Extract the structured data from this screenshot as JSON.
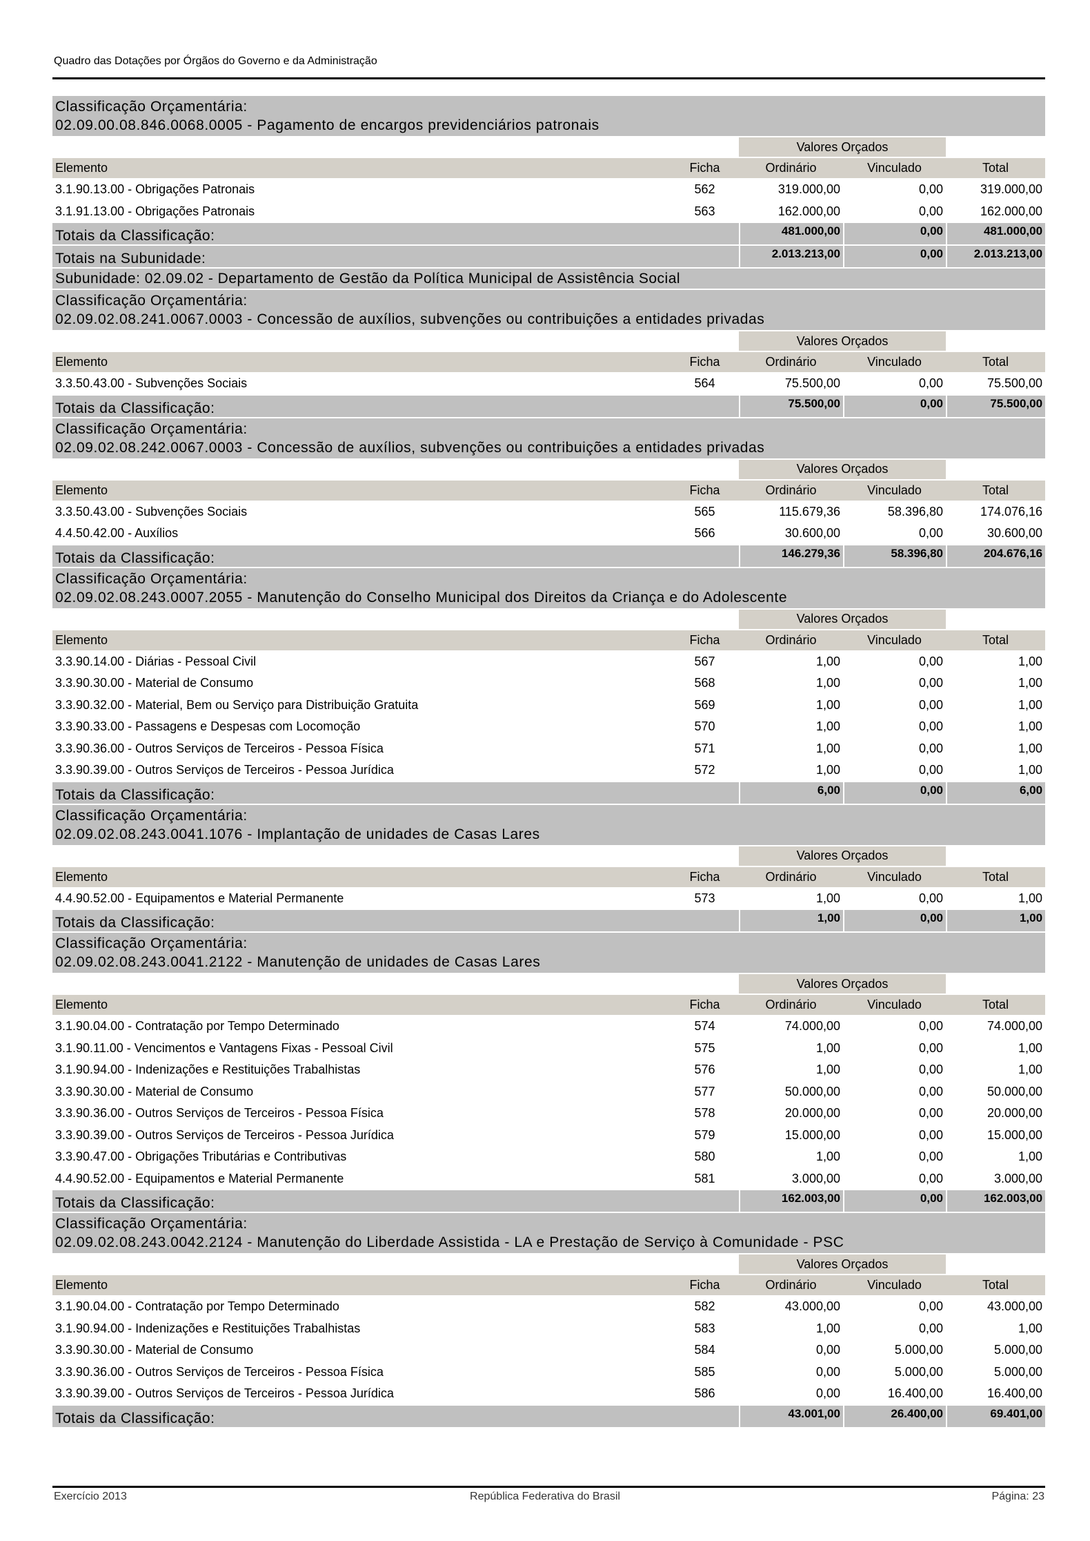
{
  "header": {
    "title": "Quadro das Dotações por Órgãos do Governo e da Administração"
  },
  "labels": {
    "classification": "Classificação Orçamentária:",
    "valores_orcados": "Valores Orçados",
    "col_elemento": "Elemento",
    "col_ficha": "Ficha",
    "col_ordinario": "Ordinário",
    "col_vinculado": "Vinculado",
    "col_total": "Total"
  },
  "sections": [
    {
      "code_title": "02.09.00.08.846.0068.0005 - Pagamento de encargos previdenciários patronais",
      "rows": [
        {
          "elemento": "3.1.90.13.00 - Obrigações Patronais",
          "ficha": "562",
          "ordinario": "319.000,00",
          "vinculado": "0,00",
          "total": "319.000,00"
        },
        {
          "elemento": "3.1.91.13.00 - Obrigações Patronais",
          "ficha": "563",
          "ordinario": "162.000,00",
          "vinculado": "0,00",
          "total": "162.000,00"
        }
      ],
      "totals": {
        "label": "Totais da Classificação:",
        "ordinario": "481.000,00",
        "vinculado": "0,00",
        "total": "481.000,00"
      },
      "subunit_totals": {
        "label": "Totais na Subunidade:",
        "ordinario": "2.013.213,00",
        "vinculado": "0,00",
        "total": "2.013.213,00"
      },
      "subunit_heading": "Subunidade: 02.09.02 - Departamento de Gestão da Política Municipal de Assistência Social"
    },
    {
      "code_title": "02.09.02.08.241.0067.0003 - Concessão de auxílios, subvenções ou contribuições a entidades privadas",
      "rows": [
        {
          "elemento": "3.3.50.43.00 - Subvenções Sociais",
          "ficha": "564",
          "ordinario": "75.500,00",
          "vinculado": "0,00",
          "total": "75.500,00"
        }
      ],
      "totals": {
        "label": "Totais da Classificação:",
        "ordinario": "75.500,00",
        "vinculado": "0,00",
        "total": "75.500,00"
      }
    },
    {
      "code_title": "02.09.02.08.242.0067.0003 - Concessão de auxílios, subvenções ou contribuições a entidades privadas",
      "rows": [
        {
          "elemento": "3.3.50.43.00 - Subvenções Sociais",
          "ficha": "565",
          "ordinario": "115.679,36",
          "vinculado": "58.396,80",
          "total": "174.076,16"
        },
        {
          "elemento": "4.4.50.42.00 - Auxílios",
          "ficha": "566",
          "ordinario": "30.600,00",
          "vinculado": "0,00",
          "total": "30.600,00"
        }
      ],
      "totals": {
        "label": "Totais da Classificação:",
        "ordinario": "146.279,36",
        "vinculado": "58.396,80",
        "total": "204.676,16"
      }
    },
    {
      "code_title": "02.09.02.08.243.0007.2055 - Manutenção do Conselho Municipal dos Direitos da Criança e do Adolescente",
      "rows": [
        {
          "elemento": "3.3.90.14.00 - Diárias - Pessoal Civil",
          "ficha": "567",
          "ordinario": "1,00",
          "vinculado": "0,00",
          "total": "1,00"
        },
        {
          "elemento": "3.3.90.30.00 - Material de Consumo",
          "ficha": "568",
          "ordinario": "1,00",
          "vinculado": "0,00",
          "total": "1,00"
        },
        {
          "elemento": "3.3.90.32.00 - Material, Bem ou Serviço para Distribuição Gratuita",
          "ficha": "569",
          "ordinario": "1,00",
          "vinculado": "0,00",
          "total": "1,00"
        },
        {
          "elemento": "3.3.90.33.00 - Passagens e Despesas com Locomoção",
          "ficha": "570",
          "ordinario": "1,00",
          "vinculado": "0,00",
          "total": "1,00"
        },
        {
          "elemento": "3.3.90.36.00 - Outros Serviços de Terceiros - Pessoa Física",
          "ficha": "571",
          "ordinario": "1,00",
          "vinculado": "0,00",
          "total": "1,00"
        },
        {
          "elemento": "3.3.90.39.00 - Outros Serviços de Terceiros - Pessoa Jurídica",
          "ficha": "572",
          "ordinario": "1,00",
          "vinculado": "0,00",
          "total": "1,00"
        }
      ],
      "totals": {
        "label": "Totais da Classificação:",
        "ordinario": "6,00",
        "vinculado": "0,00",
        "total": "6,00"
      }
    },
    {
      "code_title": "02.09.02.08.243.0041.1076 - Implantação de unidades de Casas Lares",
      "rows": [
        {
          "elemento": "4.4.90.52.00 - Equipamentos e Material Permanente",
          "ficha": "573",
          "ordinario": "1,00",
          "vinculado": "0,00",
          "total": "1,00"
        }
      ],
      "totals": {
        "label": "Totais da Classificação:",
        "ordinario": "1,00",
        "vinculado": "0,00",
        "total": "1,00"
      }
    },
    {
      "code_title": "02.09.02.08.243.0041.2122 - Manutenção de unidades de Casas Lares",
      "rows": [
        {
          "elemento": "3.1.90.04.00 - Contratação por Tempo Determinado",
          "ficha": "574",
          "ordinario": "74.000,00",
          "vinculado": "0,00",
          "total": "74.000,00"
        },
        {
          "elemento": "3.1.90.11.00 - Vencimentos e Vantagens Fixas - Pessoal Civil",
          "ficha": "575",
          "ordinario": "1,00",
          "vinculado": "0,00",
          "total": "1,00"
        },
        {
          "elemento": "3.1.90.94.00 - Indenizações e Restituições Trabalhistas",
          "ficha": "576",
          "ordinario": "1,00",
          "vinculado": "0,00",
          "total": "1,00"
        },
        {
          "elemento": "3.3.90.30.00 - Material de Consumo",
          "ficha": "577",
          "ordinario": "50.000,00",
          "vinculado": "0,00",
          "total": "50.000,00"
        },
        {
          "elemento": "3.3.90.36.00 - Outros Serviços de Terceiros - Pessoa Física",
          "ficha": "578",
          "ordinario": "20.000,00",
          "vinculado": "0,00",
          "total": "20.000,00"
        },
        {
          "elemento": "3.3.90.39.00 - Outros Serviços de Terceiros - Pessoa Jurídica",
          "ficha": "579",
          "ordinario": "15.000,00",
          "vinculado": "0,00",
          "total": "15.000,00"
        },
        {
          "elemento": "3.3.90.47.00 - Obrigações Tributárias e Contributivas",
          "ficha": "580",
          "ordinario": "1,00",
          "vinculado": "0,00",
          "total": "1,00"
        },
        {
          "elemento": "4.4.90.52.00 - Equipamentos e Material Permanente",
          "ficha": "581",
          "ordinario": "3.000,00",
          "vinculado": "0,00",
          "total": "3.000,00"
        }
      ],
      "totals": {
        "label": "Totais da Classificação:",
        "ordinario": "162.003,00",
        "vinculado": "0,00",
        "total": "162.003,00"
      }
    },
    {
      "code_title": "02.09.02.08.243.0042.2124 - Manutenção do Liberdade Assistida - LA e Prestação de Serviço à Comunidade - PSC",
      "rows": [
        {
          "elemento": "3.1.90.04.00 - Contratação por Tempo Determinado",
          "ficha": "582",
          "ordinario": "43.000,00",
          "vinculado": "0,00",
          "total": "43.000,00"
        },
        {
          "elemento": "3.1.90.94.00 - Indenizações e Restituições Trabalhistas",
          "ficha": "583",
          "ordinario": "1,00",
          "vinculado": "0,00",
          "total": "1,00"
        },
        {
          "elemento": "3.3.90.30.00 - Material de Consumo",
          "ficha": "584",
          "ordinario": "0,00",
          "vinculado": "5.000,00",
          "total": "5.000,00"
        },
        {
          "elemento": "3.3.90.36.00 - Outros Serviços de Terceiros - Pessoa Física",
          "ficha": "585",
          "ordinario": "0,00",
          "vinculado": "5.000,00",
          "total": "5.000,00"
        },
        {
          "elemento": "3.3.90.39.00 - Outros Serviços de Terceiros - Pessoa Jurídica",
          "ficha": "586",
          "ordinario": "0,00",
          "vinculado": "16.400,00",
          "total": "16.400,00"
        }
      ],
      "totals": {
        "label": "Totais da Classificação:",
        "ordinario": "43.001,00",
        "vinculado": "26.400,00",
        "total": "69.401,00"
      }
    }
  ],
  "footer": {
    "left": "Exercício 2013",
    "center": "República Federativa do Brasil",
    "right": "Página: 23"
  }
}
